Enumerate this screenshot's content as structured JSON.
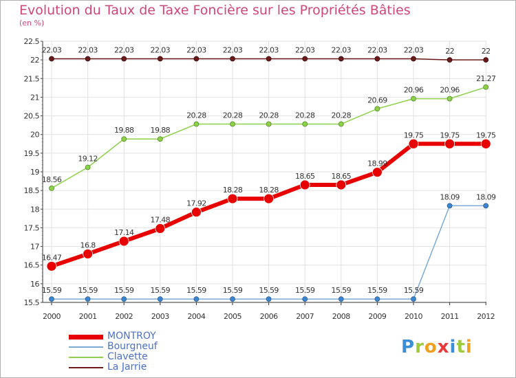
{
  "header": {
    "title": "Evolution du Taux de Taxe Foncière sur les Propriétés Bâties",
    "subtitle": "(en %)"
  },
  "logo": {
    "text": "Proxiti",
    "letters": [
      {
        "ch": "P",
        "color": "#3a8fd8"
      },
      {
        "ch": "r",
        "color": "#9ccc3c"
      },
      {
        "ch": "o",
        "color": "#f0a020"
      },
      {
        "ch": "x",
        "color": "#e83a3a"
      },
      {
        "ch": "i",
        "color": "#3a8fd8"
      },
      {
        "ch": "t",
        "color": "#9ccc3c"
      },
      {
        "ch": "i",
        "color": "#f0a020"
      }
    ]
  },
  "chart_data": {
    "type": "line",
    "title": "Evolution du Taux de Taxe Foncière sur les Propriétés Bâties",
    "ylabel": "(en %)",
    "xlabel": "",
    "ylim": [
      15.5,
      22.5
    ],
    "yticks": [
      "15.5",
      "16",
      "16.5",
      "17",
      "17.5",
      "18",
      "18.5",
      "19",
      "19.5",
      "20",
      "20.5",
      "21",
      "21.5",
      "22",
      "22.5"
    ],
    "categories": [
      "2000",
      "2001",
      "2002",
      "2003",
      "2004",
      "2005",
      "2006",
      "2007",
      "2008",
      "2009",
      "2010",
      "2011",
      "2012"
    ],
    "grid": true,
    "legend_position": "bottom-left",
    "series": [
      {
        "name": "La Jarrie",
        "color": "#6b1a1a",
        "values": [
          22.03,
          22.03,
          22.03,
          22.03,
          22.03,
          22.03,
          22.03,
          22.03,
          22.03,
          22.03,
          22.03,
          22,
          22
        ],
        "labels": [
          "22.03",
          "22.03",
          "22.03",
          "22.03",
          "22.03",
          "22.03",
          "22.03",
          "22.03",
          "22.03",
          "22.03",
          "22.03",
          "22",
          "22"
        ]
      },
      {
        "name": "Clavette",
        "color": "#8ed04a",
        "values": [
          18.56,
          19.12,
          19.88,
          19.88,
          20.28,
          20.28,
          20.28,
          20.28,
          20.28,
          20.69,
          20.96,
          20.96,
          21.27
        ],
        "labels": [
          "18.56",
          "19.12",
          "19.88",
          "19.88",
          "20.28",
          "20.28",
          "20.28",
          "20.28",
          "20.28",
          "20.69",
          "20.96",
          "20.96",
          "21.27"
        ]
      },
      {
        "name": "MONTROY",
        "color": "#e80000",
        "values": [
          16.47,
          16.8,
          17.14,
          17.48,
          17.92,
          18.28,
          18.28,
          18.65,
          18.65,
          18.99,
          19.75,
          19.75,
          19.75
        ],
        "labels": [
          "16.47",
          "16.8",
          "17.14",
          "17.48",
          "17.92",
          "18.28",
          "18.28",
          "18.65",
          "18.65",
          "18.99",
          "19.75",
          "19.75",
          "19.75"
        ]
      },
      {
        "name": "Bourgneuf",
        "color": "#7aaad4",
        "values": [
          15.59,
          15.59,
          15.59,
          15.59,
          15.59,
          15.59,
          15.59,
          15.59,
          15.59,
          15.59,
          15.59,
          18.09,
          18.09
        ],
        "labels": [
          "15.59",
          "15.59",
          "15.59",
          "15.59",
          "15.59",
          "15.59",
          "15.59",
          "15.59",
          "15.59",
          "15.59",
          "15.59",
          "18.09",
          "18.09"
        ]
      }
    ]
  },
  "legend": {
    "items": [
      {
        "label": "MONTROY",
        "color": "#e80000"
      },
      {
        "label": "Bourgneuf",
        "color": "#7aaad4"
      },
      {
        "label": "Clavette",
        "color": "#8ed04a"
      },
      {
        "label": "La Jarrie",
        "color": "#6b1a1a"
      }
    ]
  }
}
